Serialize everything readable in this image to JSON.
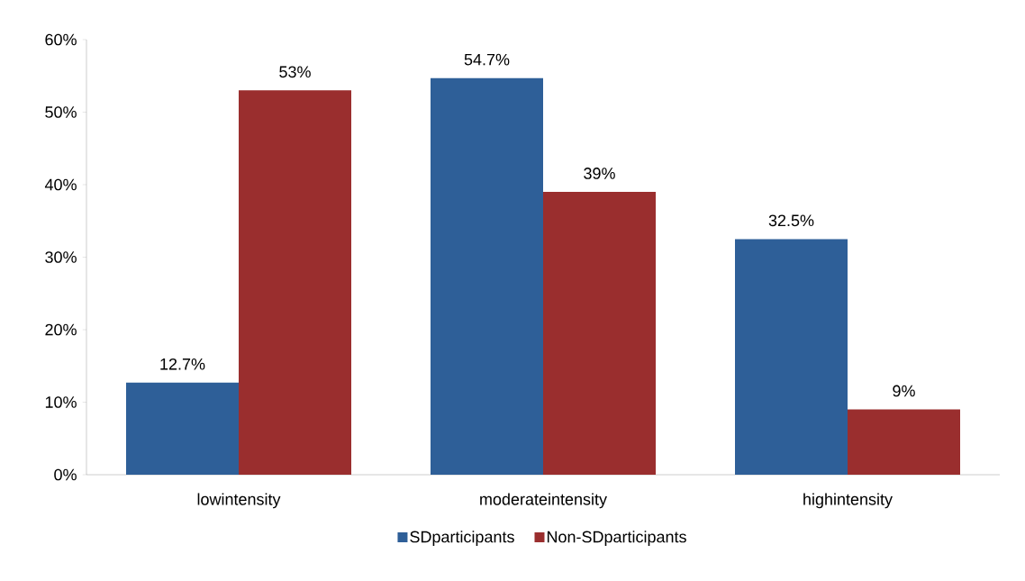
{
  "chart_data": {
    "type": "bar",
    "categories": [
      "lowintensity",
      "moderateintensity",
      "highintensity"
    ],
    "series": [
      {
        "name": "SDparticipants",
        "color": "#2e5f98",
        "values": [
          12.7,
          54.7,
          32.5
        ],
        "value_labels": [
          "12.7%",
          "54.7%",
          "32.5%"
        ]
      },
      {
        "name": "Non-SDparticipants",
        "color": "#9a2e2e",
        "values": [
          53,
          39,
          9
        ],
        "value_labels": [
          "53%",
          "39%",
          "9%"
        ]
      }
    ],
    "ylim": [
      0,
      60
    ],
    "yticks": [
      {
        "value": 0,
        "label": "0%"
      },
      {
        "value": 10,
        "label": "10%"
      },
      {
        "value": 20,
        "label": "20%"
      },
      {
        "value": 30,
        "label": "30%"
      },
      {
        "value": 40,
        "label": "40%"
      },
      {
        "value": 50,
        "label": "50%"
      },
      {
        "value": 60,
        "label": "60%"
      }
    ],
    "legend": "bottom"
  }
}
